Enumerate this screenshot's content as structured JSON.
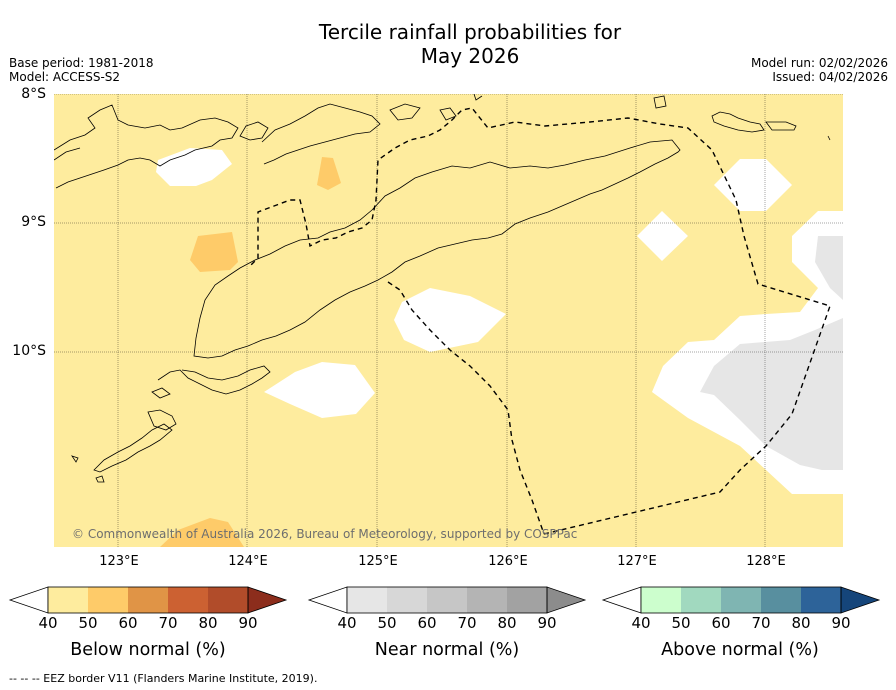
{
  "title_line1": "Tercile rainfall probabilities for",
  "title_line2": "May 2026",
  "meta_left": {
    "base_period": "Base period: 1981-2018",
    "model": "Model: ACCESS-S2"
  },
  "meta_right": {
    "model_run": "Model run: 02/02/2026",
    "issued": "Issued: 04/02/2026"
  },
  "map": {
    "lat_labels": [
      "8°S",
      "9°S",
      "10°S"
    ],
    "lon_labels": [
      "123°E",
      "124°E",
      "125°E",
      "126°E",
      "127°E",
      "128°E"
    ],
    "copyright": "© Commonwealth of Australia 2026, Bureau of Meteorology, supported by COSPPac"
  },
  "colorbars": {
    "below": {
      "title": "Below normal (%)",
      "ticks": [
        "40",
        "50",
        "60",
        "70",
        "80",
        "90"
      ],
      "colors": [
        "#feec9e",
        "#fecb69",
        "#e09446",
        "#cc6132",
        "#b14c2a",
        "#8c2d1c"
      ]
    },
    "near": {
      "title": "Near normal (%)",
      "ticks": [
        "40",
        "50",
        "60",
        "70",
        "80",
        "90"
      ],
      "colors": [
        "#e6e6e6",
        "#d7d7d7",
        "#c6c6c6",
        "#b4b4b4",
        "#a2a2a2",
        "#8c8c8c"
      ]
    },
    "above": {
      "title": "Above normal (%)",
      "ticks": [
        "40",
        "50",
        "60",
        "70",
        "80",
        "90"
      ],
      "colors": [
        "#ccfecd",
        "#a1d9bf",
        "#7fb5b2",
        "#588f9f",
        "#2d6399",
        "#15457a"
      ]
    }
  },
  "footer": "--  --  -- EEZ border V11 (Flanders Marine Institute, 2019)."
}
